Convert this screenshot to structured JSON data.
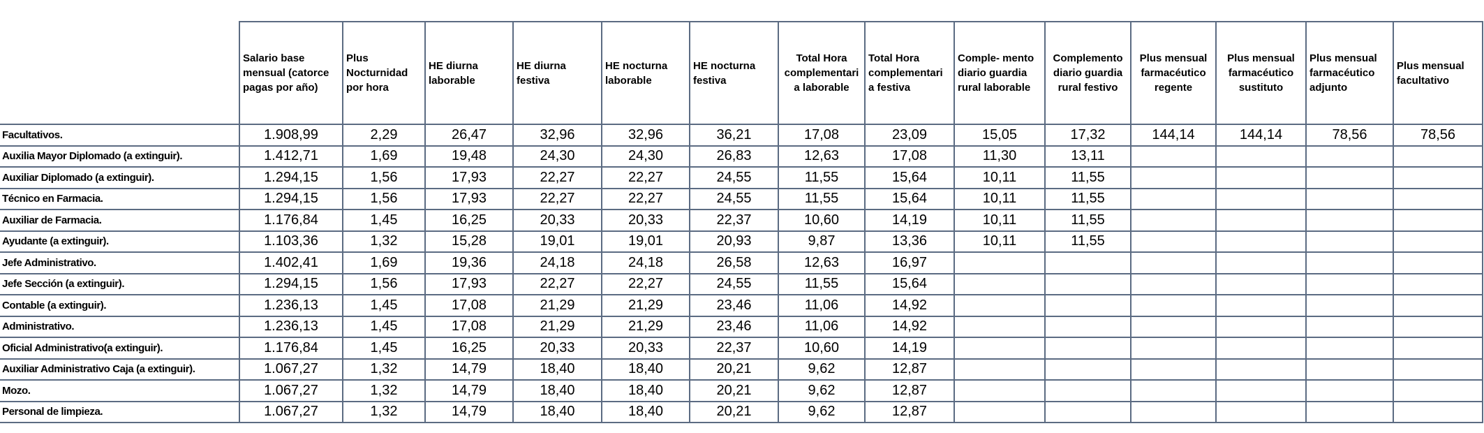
{
  "table": {
    "headers": [
      "Salario base mensual (catorce pagas por año)",
      "Plus Nocturnidad por hora",
      "HE diurna laborable",
      "HE diurna festiva",
      "HE nocturna laborable",
      "HE nocturna festiva",
      "Total Hora complementari a laborable",
      "Total Hora complementari a festiva",
      "Comple- mento diario guardia rural laborable",
      "Complemento diario guardia rural festivo",
      "Plus mensual farmacéutico regente",
      "Plus mensual farmacéutico sustituto",
      "Plus mensual farmacéutico adjunto",
      "Plus mensual facultativo"
    ],
    "rows": [
      {
        "label": "Facultativos.",
        "values": [
          "1.908,99",
          "2,29",
          "26,47",
          "32,96",
          "32,96",
          "36,21",
          "17,08",
          "23,09",
          "15,05",
          "17,32",
          "144,14",
          "144,14",
          "78,56",
          "78,56"
        ]
      },
      {
        "label": "Auxilia Mayor Diplomado (a extinguir).",
        "values": [
          "1.412,71",
          "1,69",
          "19,48",
          "24,30",
          "24,30",
          "26,83",
          "12,63",
          "17,08",
          "11,30",
          "13,11"
        ]
      },
      {
        "label": "Auxiliar Diplomado (a extinguir).",
        "values": [
          "1.294,15",
          "1,56",
          "17,93",
          "22,27",
          "22,27",
          "24,55",
          "11,55",
          "15,64",
          "10,11",
          "11,55"
        ]
      },
      {
        "label": "Técnico en Farmacia.",
        "values": [
          "1.294,15",
          "1,56",
          "17,93",
          "22,27",
          "22,27",
          "24,55",
          "11,55",
          "15,64",
          "10,11",
          "11,55"
        ]
      },
      {
        "label": "Auxiliar de Farmacia.",
        "values": [
          "1.176,84",
          "1,45",
          "16,25",
          "20,33",
          "20,33",
          "22,37",
          "10,60",
          "14,19",
          "10,11",
          "11,55"
        ]
      },
      {
        "label": "Ayudante (a extinguir).",
        "values": [
          "1.103,36",
          "1,32",
          "15,28",
          "19,01",
          "19,01",
          "20,93",
          "9,87",
          "13,36",
          "10,11",
          "11,55"
        ]
      },
      {
        "label": "Jefe Administrativo.",
        "values": [
          "1.402,41",
          "1,69",
          "19,36",
          "24,18",
          "24,18",
          "26,58",
          "12,63",
          "16,97"
        ]
      },
      {
        "label": "Jefe Sección (a extinguir).",
        "values": [
          "1.294,15",
          "1,56",
          "17,93",
          "22,27",
          "22,27",
          "24,55",
          "11,55",
          "15,64"
        ]
      },
      {
        "label": "Contable (a extinguir).",
        "values": [
          "1.236,13",
          "1,45",
          "17,08",
          "21,29",
          "21,29",
          "23,46",
          "11,06",
          "14,92"
        ]
      },
      {
        "label": "Administrativo.",
        "values": [
          "1.236,13",
          "1,45",
          "17,08",
          "21,29",
          "21,29",
          "23,46",
          "11,06",
          "14,92"
        ]
      },
      {
        "label": "Oficial Administrativo(a extinguir).",
        "values": [
          "1.176,84",
          "1,45",
          "16,25",
          "20,33",
          "20,33",
          "22,37",
          "10,60",
          "14,19"
        ]
      },
      {
        "label": "Auxiliar Administrativo Caja (a extinguir).",
        "values": [
          "1.067,27",
          "1,32",
          "14,79",
          "18,40",
          "18,40",
          "20,21",
          "9,62",
          "12,87"
        ]
      },
      {
        "label": "Mozo.",
        "values": [
          "1.067,27",
          "1,32",
          "14,79",
          "18,40",
          "18,40",
          "20,21",
          "9,62",
          "12,87"
        ]
      },
      {
        "label": "Personal de limpieza.",
        "values": [
          "1.067,27",
          "1,32",
          "14,79",
          "18,40",
          "18,40",
          "20,21",
          "9,62",
          "12,87"
        ]
      }
    ]
  }
}
